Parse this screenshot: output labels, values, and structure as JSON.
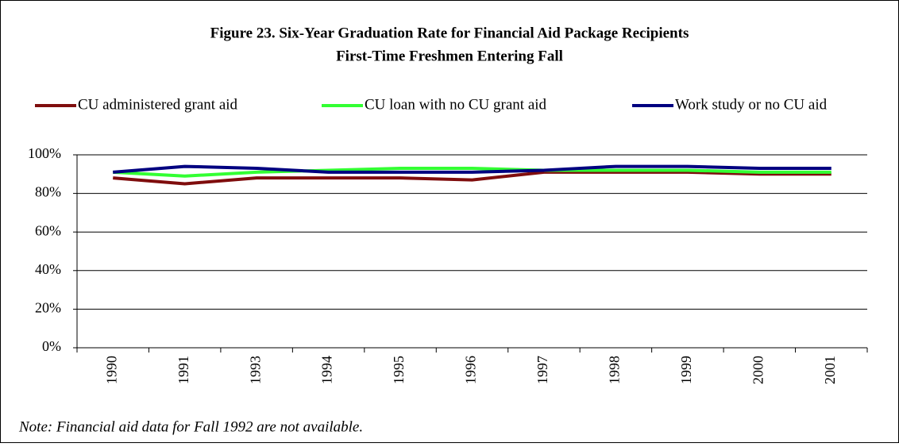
{
  "chart_data": {
    "type": "line",
    "title": "Figure 23. Six-Year Graduation Rate for Financial Aid Package Recipients",
    "subtitle": "First-Time Freshmen Entering Fall",
    "categories": [
      "1990",
      "1991",
      "1993",
      "1994",
      "1995",
      "1996",
      "1997",
      "1998",
      "1999",
      "2000",
      "2001"
    ],
    "series": [
      {
        "name": "CU administered grant aid",
        "color": "#7f0d0d",
        "values": [
          88,
          85,
          88,
          88,
          88,
          87,
          91,
          91,
          91,
          90,
          90
        ]
      },
      {
        "name": "CU loan with no CU grant aid",
        "color": "#33ff33",
        "values": [
          91,
          89,
          91,
          92,
          93,
          93,
          92,
          92,
          92,
          91,
          91
        ]
      },
      {
        "name": "Work study or no CU aid",
        "color": "#000080",
        "values": [
          91,
          94,
          93,
          91,
          91,
          91,
          92,
          94,
          94,
          93,
          93
        ]
      }
    ],
    "ylim": [
      0,
      100
    ],
    "yticks": [
      {
        "value": 0,
        "label": "0%"
      },
      {
        "value": 20,
        "label": "20%"
      },
      {
        "value": 40,
        "label": "40%"
      },
      {
        "value": 60,
        "label": "60%"
      },
      {
        "value": 80,
        "label": "80%"
      },
      {
        "value": 100,
        "label": "100%"
      }
    ],
    "grid": true,
    "legend": "top",
    "note": "Note: Financial aid data for Fall 1992 are not available."
  }
}
